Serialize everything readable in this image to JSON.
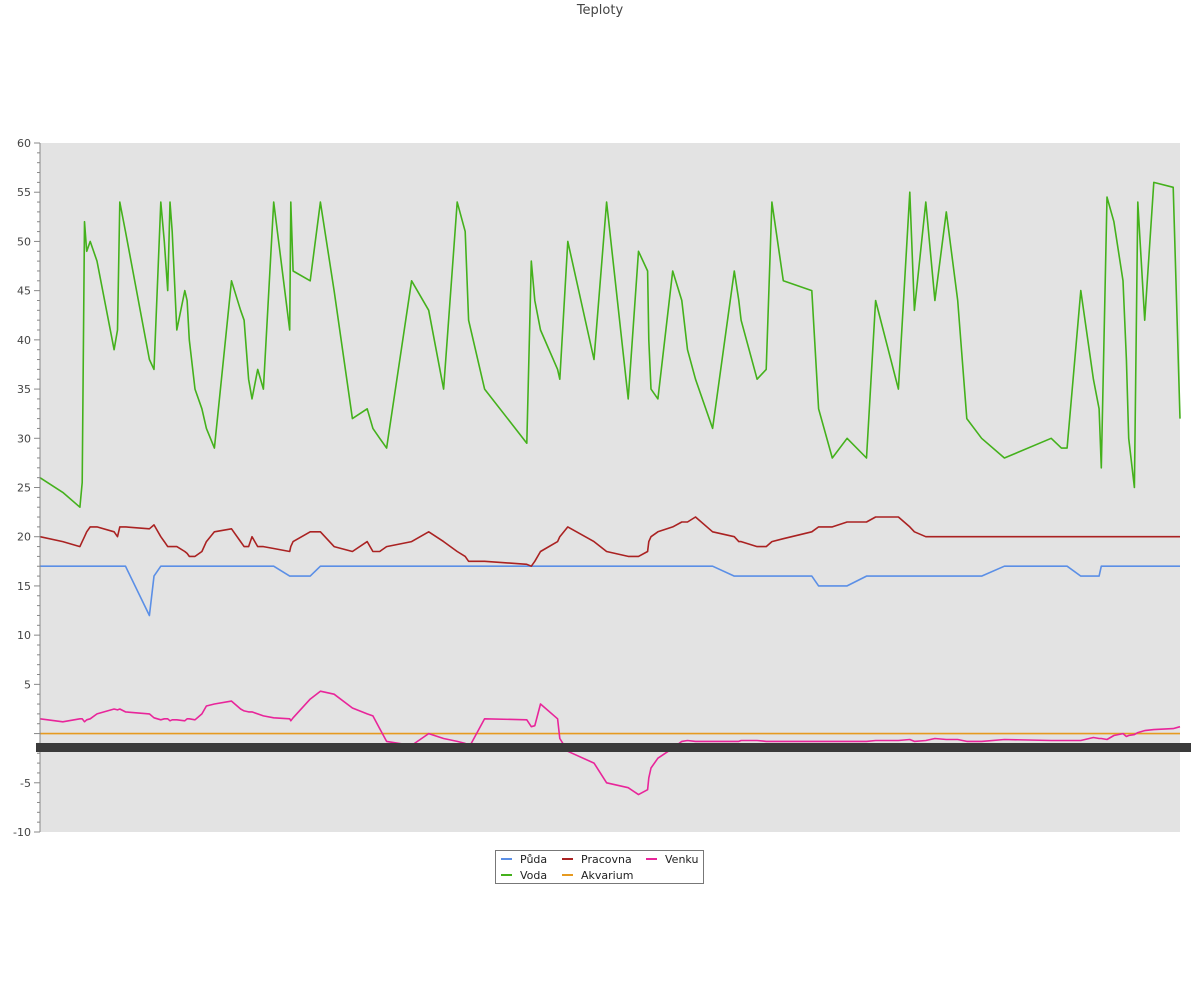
{
  "chart_data": {
    "type": "line",
    "title": "Teploty",
    "xlabel": "",
    "ylabel": "",
    "ylim": [
      -10,
      60
    ],
    "yticks": [
      -10,
      -5,
      0,
      5,
      10,
      15,
      20,
      25,
      30,
      35,
      40,
      45,
      50,
      55,
      60
    ],
    "ytick_labels": [
      "-10",
      "-5",
      "",
      "5",
      "10",
      "15",
      "20",
      "25",
      "30",
      "35",
      "40",
      "45",
      "50",
      "55",
      "60"
    ],
    "xlim": [
      0,
      100
    ],
    "grid": false,
    "plot_background": "#e3e3e3",
    "legend_position": "bottom-center",
    "x": [
      0,
      2,
      3.5,
      3.7,
      3.9,
      4.1,
      4.4,
      5,
      6.5,
      6.8,
      7,
      7.5,
      9.6,
      10,
      10.6,
      10.9,
      11.2,
      11.4,
      11.6,
      12,
      12.7,
      12.9,
      13.1,
      13.6,
      14.2,
      14.6,
      15.3,
      16.8,
      17.6,
      17.9,
      18.3,
      18.6,
      19.1,
      19.6,
      20.5,
      21.9,
      22,
      22.2,
      23.7,
      24.6,
      25.8,
      27.4,
      28.7,
      29.2,
      29.8,
      30.4,
      32.6,
      34.1,
      35.4,
      36.6,
      37.3,
      37.6,
      39,
      42.7,
      43.1,
      43.4,
      43.9,
      45.4,
      45.6,
      46.3,
      48.6,
      49.7,
      51.6,
      52.5,
      53.3,
      53.4,
      53.6,
      54.2,
      55.5,
      56.3,
      56.8,
      57.5,
      59,
      60.9,
      61.3,
      61.5,
      62.9,
      63.7,
      64.2,
      65.2,
      67.7,
      68.3,
      69.5,
      70.8,
      72.5,
      73.3,
      75.3,
      76.3,
      76.7,
      77.7,
      78.5,
      79.5,
      80.5,
      81.3,
      82.6,
      84.6,
      88.7,
      89.6,
      90.1,
      91.3,
      92.4,
      92.9,
      93.1,
      93.6,
      94.2,
      95,
      95.3,
      95.5,
      96,
      96.3,
      96.9,
      97.7,
      99.4,
      100
    ],
    "series": [
      {
        "name": "Půda",
        "color": "#5b8fe6",
        "values": [
          17,
          17,
          17,
          17,
          17,
          17,
          17,
          17,
          17,
          17,
          17,
          17,
          12,
          16,
          17,
          17,
          17,
          17,
          17,
          17,
          17,
          17,
          17,
          17,
          17,
          17,
          17,
          17,
          17,
          17,
          17,
          17,
          17,
          17,
          17,
          16,
          16,
          16,
          16,
          17,
          17,
          17,
          17,
          17,
          17,
          17,
          17,
          17,
          17,
          17,
          17,
          17,
          17,
          17,
          17,
          17,
          17,
          17,
          17,
          17,
          17,
          17,
          17,
          17,
          17,
          17,
          17,
          17,
          17,
          17,
          17,
          17,
          17,
          16,
          16,
          16,
          16,
          16,
          16,
          16,
          16,
          15,
          15,
          15,
          16,
          16,
          16,
          16,
          16,
          16,
          16,
          16,
          16,
          16,
          16,
          17,
          17,
          17,
          17,
          16,
          16,
          16,
          17,
          17,
          17,
          17,
          17,
          17,
          17,
          17,
          17,
          17,
          17,
          17
        ]
      },
      {
        "name": "Voda",
        "color": "#44b11c",
        "values": [
          26,
          24.5,
          23,
          25.5,
          52,
          49,
          50,
          48,
          39,
          41,
          54,
          51,
          38,
          37,
          54,
          50,
          45,
          54,
          51,
          41,
          45,
          44,
          40,
          35,
          33,
          31,
          29,
          46,
          43,
          42,
          36,
          34,
          37,
          35,
          54,
          41,
          54,
          47,
          46,
          54,
          45,
          32,
          33,
          31,
          30,
          29,
          46,
          43,
          35,
          54,
          51,
          42,
          35,
          29.5,
          48,
          44,
          41,
          37,
          36,
          50,
          38,
          54,
          34,
          49,
          47,
          40,
          35,
          34,
          47,
          44,
          39,
          36,
          31,
          47,
          44,
          42,
          36,
          37,
          54,
          46,
          45,
          33,
          28,
          30,
          28,
          44,
          35,
          55,
          43,
          54,
          44,
          53,
          44,
          32,
          30,
          28,
          30,
          29,
          29,
          45,
          36,
          33,
          27,
          54.5,
          52,
          46,
          38,
          30,
          25,
          54,
          42,
          56,
          55.5,
          32
        ]
      },
      {
        "name": "Pracovna",
        "color": "#aa2222",
        "values": [
          20,
          19.5,
          19,
          19.5,
          20,
          20.5,
          21,
          21,
          20.5,
          20,
          21,
          21,
          20.8,
          21.2,
          20,
          19.5,
          19,
          19,
          19,
          19,
          18.5,
          18.3,
          18,
          18,
          18.5,
          19.5,
          20.5,
          20.8,
          19.5,
          19,
          19,
          20,
          19,
          19,
          18.8,
          18.5,
          19,
          19.5,
          20.5,
          20.5,
          19,
          18.5,
          19.5,
          18.5,
          18.5,
          19,
          19.5,
          20.5,
          19.5,
          18.5,
          18,
          17.5,
          17.5,
          17.2,
          17,
          17.5,
          18.5,
          19.5,
          20,
          21,
          19.5,
          18.5,
          18,
          18,
          18.5,
          19.5,
          20,
          20.5,
          21,
          21.5,
          21.5,
          22,
          20.5,
          20,
          19.5,
          19.5,
          19,
          19,
          19.5,
          19.8,
          20.5,
          21,
          21,
          21.5,
          21.5,
          22,
          22,
          21,
          20.5,
          20,
          20,
          20,
          20,
          20,
          20,
          20,
          20,
          20,
          20,
          20,
          20,
          20,
          20,
          20,
          20,
          20,
          20,
          20,
          20,
          20,
          20,
          20,
          20,
          20
        ]
      },
      {
        "name": "Akvarium",
        "color": "#e69a20",
        "values": [
          0,
          0,
          0,
          0,
          0,
          0,
          0,
          0,
          0,
          0,
          0,
          0,
          0,
          0,
          0,
          0,
          0,
          0,
          0,
          0,
          0,
          0,
          0,
          0,
          0,
          0,
          0,
          0,
          0,
          0,
          0,
          0,
          0,
          0,
          0,
          0,
          0,
          0,
          0,
          0,
          0,
          0,
          0,
          0,
          0,
          0,
          0,
          0,
          0,
          0,
          0,
          0,
          0,
          0,
          0,
          0,
          0,
          0,
          0,
          0,
          0,
          0,
          0,
          0,
          0,
          0,
          0,
          0,
          0,
          0,
          0,
          0,
          0,
          0,
          0,
          0,
          0,
          0,
          0,
          0,
          0,
          0,
          0,
          0,
          0,
          0,
          0,
          0,
          0,
          0,
          0,
          0,
          0,
          0,
          0,
          0,
          0,
          0,
          0,
          0,
          0,
          0,
          0,
          0,
          0,
          0,
          0,
          0,
          0,
          0,
          0,
          0,
          0,
          0
        ]
      },
      {
        "name": "Venku",
        "color": "#e8259a",
        "values": [
          1.5,
          1.2,
          1.5,
          1.5,
          1.2,
          1.4,
          1.5,
          2,
          2.5,
          2.4,
          2.5,
          2.2,
          2,
          1.6,
          1.4,
          1.5,
          1.5,
          1.3,
          1.4,
          1.4,
          1.3,
          1.5,
          1.5,
          1.4,
          2,
          2.8,
          3,
          3.3,
          2.5,
          2.3,
          2.2,
          2.2,
          2,
          1.8,
          1.6,
          1.5,
          1.3,
          1.6,
          3.5,
          4.3,
          4,
          2.6,
          2,
          1.8,
          0.5,
          -0.8,
          -1.2,
          0,
          -0.5,
          -0.8,
          -1,
          -1.5,
          1.5,
          1.4,
          0.7,
          0.8,
          3,
          1.5,
          -0.5,
          -1.8,
          -3,
          -5,
          -5.5,
          -6.2,
          -5.7,
          -4.5,
          -3.5,
          -2.5,
          -1.5,
          -0.8,
          -0.7,
          -0.8,
          -0.8,
          -0.8,
          -0.8,
          -0.7,
          -0.7,
          -0.8,
          -0.8,
          -0.8,
          -0.8,
          -0.8,
          -0.8,
          -0.8,
          -0.8,
          -0.7,
          -0.7,
          -0.6,
          -0.8,
          -0.7,
          -0.5,
          -0.6,
          -0.6,
          -0.8,
          -0.8,
          -0.6,
          -0.7,
          -0.7,
          -0.7,
          -0.7,
          -0.4,
          -0.5,
          -0.5,
          -0.6,
          -0.2,
          0,
          -0.3,
          -0.2,
          -0.1,
          0.1,
          0.3,
          0.4,
          0.5,
          0.7
        ]
      }
    ]
  }
}
